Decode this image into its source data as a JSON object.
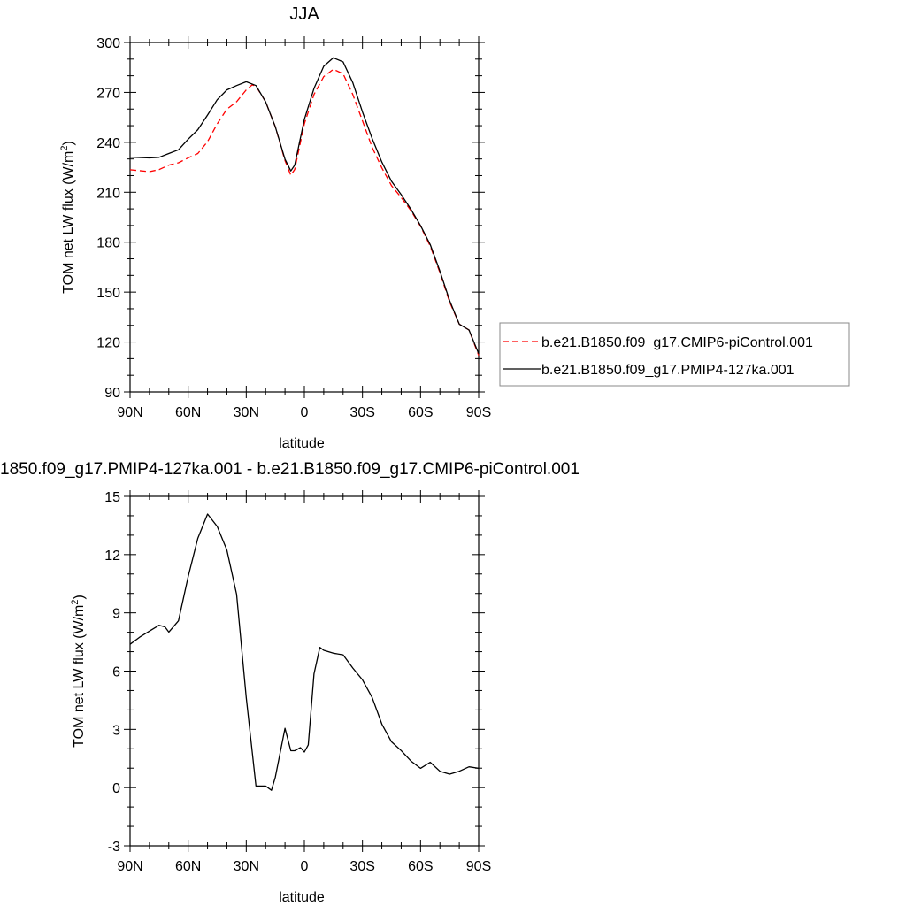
{
  "chart_data": [
    {
      "type": "line",
      "title": "JJA",
      "xlabel": "latitude",
      "ylabel": "TOM net LW flux (W/m",
      "ylabel_sup": "2",
      "ylabel_close": ")",
      "xlim": [
        90,
        -90
      ],
      "ylim": [
        90,
        300
      ],
      "xticks": [
        90,
        60,
        30,
        0,
        -30,
        -60,
        -90
      ],
      "xtick_labels": [
        "90N",
        "60N",
        "30N",
        "0",
        "30S",
        "60S",
        "90S"
      ],
      "yticks": [
        90,
        120,
        150,
        180,
        210,
        240,
        270,
        300
      ],
      "ytick_labels": [
        "90",
        "120",
        "150",
        "180",
        "210",
        "240",
        "270",
        "300"
      ],
      "legend": "right",
      "series": [
        {
          "name": "b.e21.B1850.f09_g17.CMIP6-piControl.001",
          "color": "#ff0000",
          "dash": "dashed",
          "x": [
            90,
            80,
            75,
            70,
            65,
            60,
            55,
            50,
            45,
            40,
            35,
            30,
            27,
            25,
            20,
            15,
            10,
            7,
            5,
            0,
            -5,
            -10,
            -15,
            -20,
            -25,
            -30,
            -35,
            -40,
            -45,
            -50,
            -55,
            -60,
            -65,
            -70,
            -75,
            -80,
            -85,
            -90
          ],
          "y": [
            223.5,
            222.4,
            223.6,
            226.3,
            227.7,
            230.7,
            233.3,
            240.4,
            251.1,
            259.9,
            264.4,
            271.5,
            274.5,
            273.8,
            264.4,
            249.3,
            229,
            220.2,
            223.7,
            251.1,
            268.8,
            279.5,
            283.9,
            281.2,
            268.8,
            252.9,
            237,
            224.6,
            214,
            206.9,
            199,
            189.5,
            177.6,
            161.7,
            144,
            130.7,
            127.2,
            112
          ]
        },
        {
          "name": "b.e21.B1850.f09_g17.PMIP4-127ka.001",
          "color": "#000000",
          "dash": "solid",
          "x": [
            90,
            80,
            75,
            70,
            65,
            60,
            55,
            50,
            45,
            40,
            35,
            30,
            25,
            20,
            15,
            10,
            7,
            5,
            0,
            -5,
            -10,
            -15,
            -20,
            -25,
            -30,
            -35,
            -40,
            -45,
            -50,
            -55,
            -60,
            -65,
            -70,
            -75,
            -80,
            -85,
            -90
          ],
          "y": [
            231.1,
            230.6,
            231,
            233.3,
            235.5,
            241.9,
            247.6,
            256.4,
            265.6,
            271.5,
            274.1,
            276.4,
            274.1,
            264.4,
            249.3,
            229.9,
            222.8,
            226.3,
            253.8,
            272.4,
            285.7,
            290.8,
            288.3,
            275.9,
            258.2,
            242.3,
            228.1,
            216.6,
            208.6,
            199.8,
            190,
            178.5,
            162.6,
            144.9,
            130.7,
            127.2,
            113
          ]
        }
      ]
    },
    {
      "type": "line",
      "title": "1850.f09_g17.PMIP4-127ka.001 - b.e21.B1850.f09_g17.CMIP6-piControl.001",
      "xlabel": "latitude",
      "ylabel": "TOM net LW flux (W/m",
      "ylabel_sup": "2",
      "ylabel_close": ")",
      "xlim": [
        90,
        -90
      ],
      "ylim": [
        -3,
        15
      ],
      "xticks": [
        90,
        60,
        30,
        0,
        -30,
        -60,
        -90
      ],
      "xtick_labels": [
        "90N",
        "60N",
        "30N",
        "0",
        "30S",
        "60S",
        "90S"
      ],
      "yticks": [
        -3,
        0,
        3,
        6,
        9,
        12,
        15
      ],
      "ytick_labels": [
        "-3",
        "0",
        "3",
        "6",
        "9",
        "12",
        "15"
      ],
      "series": [
        {
          "color": "#000000",
          "dash": "solid",
          "x": [
            90,
            85,
            80,
            75,
            72,
            70,
            65,
            60,
            55,
            50,
            45,
            40,
            35,
            30,
            25,
            20,
            17,
            15,
            10,
            7,
            5,
            2,
            0,
            -2,
            -5,
            -8,
            -10,
            -15,
            -20,
            -25,
            -30,
            -35,
            -40,
            -45,
            -50,
            -55,
            -60,
            -65,
            -70,
            -75,
            -80,
            -85,
            -90
          ],
          "y": [
            7.38,
            7.75,
            8.06,
            8.36,
            8.28,
            8.01,
            8.59,
            10.87,
            12.84,
            14.09,
            13.45,
            12.24,
            9.96,
            4.64,
            0.08,
            0.08,
            -0.14,
            0.54,
            3.05,
            1.9,
            1.9,
            2.06,
            1.83,
            2.2,
            5.86,
            7.22,
            7.07,
            6.92,
            6.84,
            6.16,
            5.55,
            4.64,
            3.27,
            2.36,
            1.91,
            1.37,
            0.99,
            1.3,
            0.84,
            0.69,
            0.84,
            1.07,
            0.99
          ]
        }
      ]
    }
  ]
}
